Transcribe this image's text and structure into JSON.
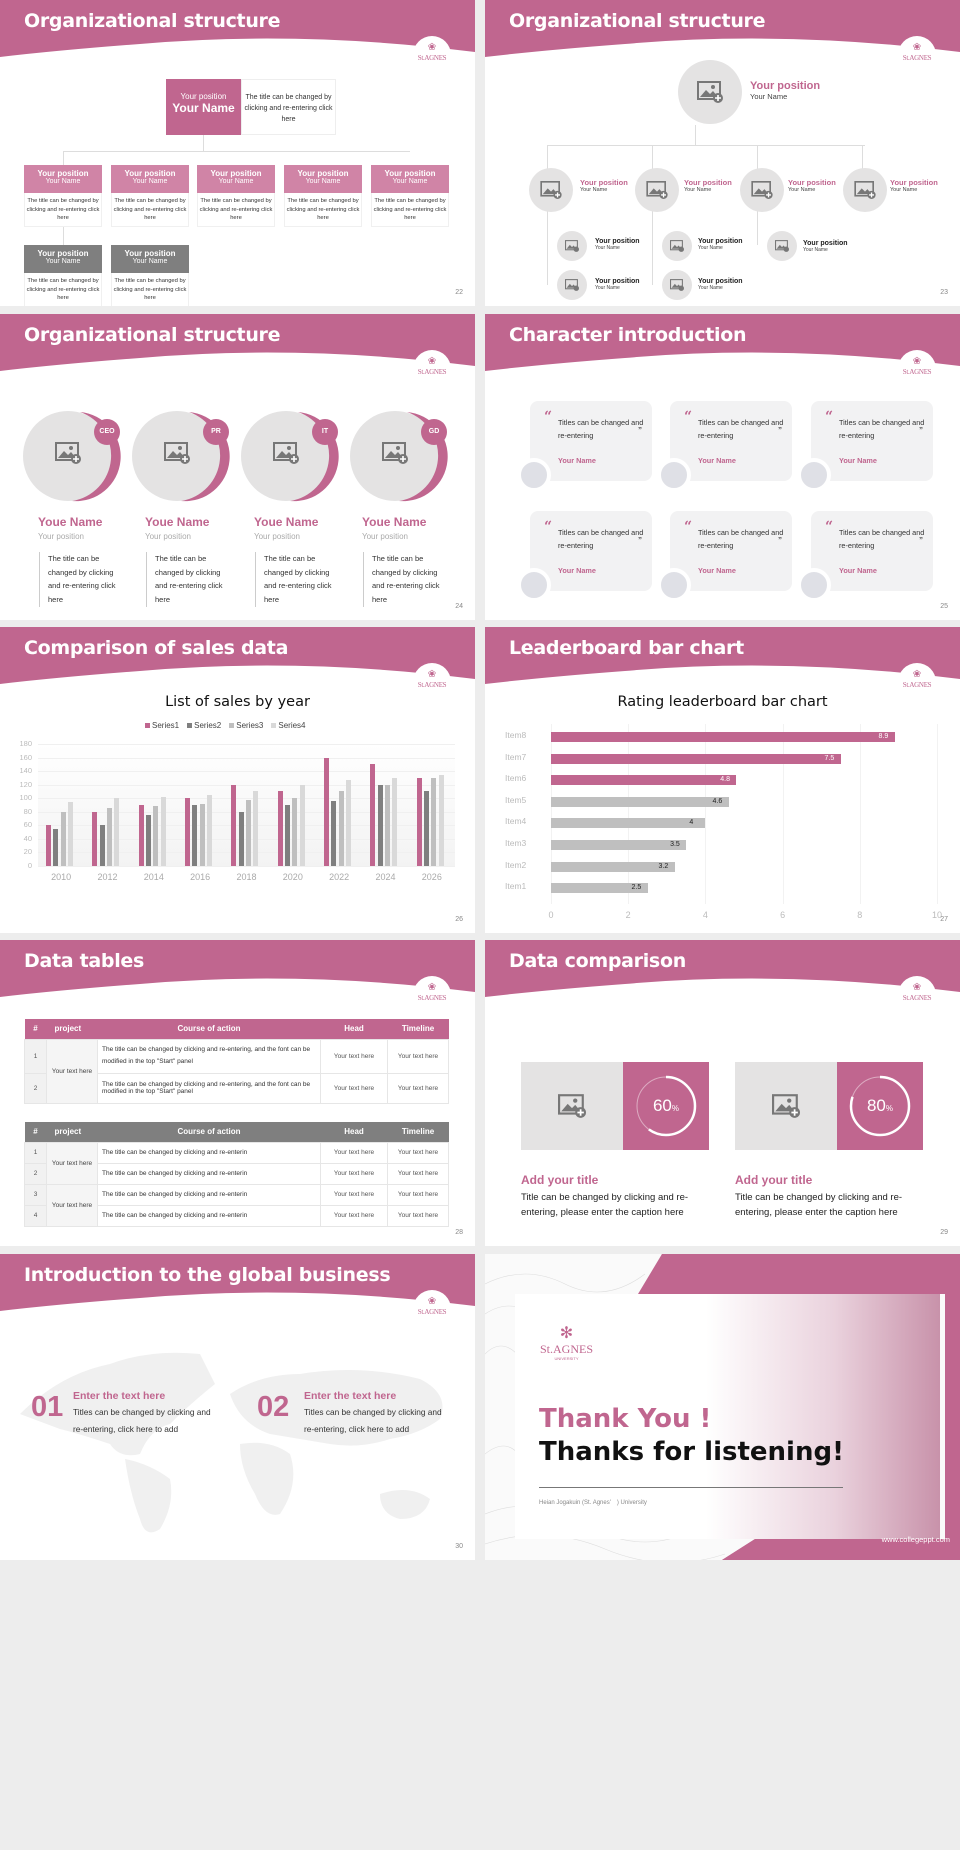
{
  "theme": {
    "accent": "#c0668f",
    "gray_dark": "#7f7f7f",
    "gray_light": "#e4e3e3"
  },
  "slides": {
    "s22": {
      "title": "Organizational structure",
      "page": "22",
      "logo": {
        "flower": "❀",
        "text": "St.AGNES"
      },
      "top": {
        "position": "Your position",
        "name": "Your Name",
        "desc": "The title can be changed by clicking and re-entering click here"
      },
      "cards": [
        {
          "position": "Your position",
          "name": "Your Name",
          "desc": "The title can be changed by clicking and re-entering click here",
          "color": "pink"
        },
        {
          "position": "Your position",
          "name": "Your Name",
          "desc": "The title can be changed by clicking and re-entering click here",
          "color": "pink"
        },
        {
          "position": "Your position",
          "name": "Your Name",
          "desc": "The title can be changed by clicking and re-entering click here",
          "color": "pink"
        },
        {
          "position": "Your position",
          "name": "Your Name",
          "desc": "The title can be changed by clicking and re-entering click here",
          "color": "pink"
        },
        {
          "position": "Your position",
          "name": "Your Name",
          "desc": "The title can be changed by clicking and re-entering click here",
          "color": "pink"
        },
        {
          "position": "Your position",
          "name": "Your Name",
          "desc": "The title can be changed by clicking and re-entering click here",
          "color": "gray"
        },
        {
          "position": "Your position",
          "name": "Your Name",
          "desc": "The title can be changed by clicking and re-entering click here",
          "color": "gray"
        }
      ]
    },
    "s23": {
      "title": "Organizational structure",
      "page": "23",
      "top": {
        "position": "Your position",
        "name": "Your Name"
      },
      "level2": [
        {
          "position": "Your position",
          "name": "Your Name"
        },
        {
          "position": "Your position",
          "name": "Your Name"
        },
        {
          "position": "Your position",
          "name": "Your Name"
        },
        {
          "position": "Your position",
          "name": "Your Name"
        }
      ],
      "level3": [
        {
          "position": "Your position",
          "name": "Your Name"
        },
        {
          "position": "Your position",
          "name": "Your Name"
        },
        {
          "position": "Your position",
          "name": "Your Name"
        },
        {
          "position": "Your position",
          "name": "Your Name"
        },
        {
          "position": "Your position",
          "name": "Your Name"
        }
      ]
    },
    "s24": {
      "title": "Organizational structure",
      "page": "24",
      "people": [
        {
          "badge": "CEO",
          "name": "Youe Name",
          "position": "Your position",
          "desc": "The title can be changed by clicking and re-entering click here"
        },
        {
          "badge": "PR",
          "name": "Youe Name",
          "position": "Your position",
          "desc": "The title can be changed by clicking and re-entering click here"
        },
        {
          "badge": "IT",
          "name": "Youe Name",
          "position": "Your position",
          "desc": "The title can be changed by clicking and re-entering click here"
        },
        {
          "badge": "GD",
          "name": "Youe Name",
          "position": "Your position",
          "desc": "The title can be changed by clicking and re-entering click here"
        }
      ]
    },
    "s25": {
      "title": "Character introduction",
      "page": "25",
      "quotes": [
        {
          "text": "Titles can be changed and re-entering",
          "name": "Your Name"
        },
        {
          "text": "Titles can be changed and re-entering",
          "name": "Your Name"
        },
        {
          "text": "Titles can be changed and re-entering",
          "name": "Your Name"
        },
        {
          "text": "Titles can be changed and re-entering",
          "name": "Your Name"
        },
        {
          "text": "Titles can be changed and re-entering",
          "name": "Your Name"
        },
        {
          "text": "Titles can be changed and re-entering",
          "name": "Your Name"
        }
      ],
      "open_quote": "“",
      "close_quote": "”"
    },
    "s26": {
      "title": "Comparison of sales data",
      "page": "26"
    },
    "s27": {
      "title": "Leaderboard bar chart",
      "page": "27"
    },
    "s28": {
      "title": "Data tables",
      "page": "28",
      "headers": [
        "#",
        "project",
        "Course of action",
        "Head",
        "Timeline"
      ],
      "table1": {
        "rows": [
          {
            "num": "1",
            "action": "The title can be changed by clicking and re-entering, and the font can be modified in the top \"Start\" panel",
            "head": "Your text here",
            "timeline": "Your text here"
          },
          {
            "num": "2",
            "action": "The title can be changed by clicking and re-entering, and the font can be modified in the top \"Start\" panel",
            "head": "Your text here",
            "timeline": "Your text here"
          }
        ],
        "project": "Your text here"
      },
      "table2": {
        "rows": [
          {
            "num": "1",
            "action": "The title can be changed by clicking and re-enterin",
            "head": "Your text here",
            "timeline": "Your text here"
          },
          {
            "num": "2",
            "action": "The title can be changed by clicking and re-enterin",
            "head": "Your text here",
            "timeline": "Your text here"
          },
          {
            "num": "3",
            "action": "The title can be changed by clicking and re-enterin",
            "head": "Your text here",
            "timeline": "Your text here"
          },
          {
            "num": "4",
            "action": "The title can be changed by clicking and re-enterin",
            "head": "Your text here",
            "timeline": "Your text here"
          }
        ],
        "project_a": "Your text here",
        "project_b": "Your text here"
      }
    },
    "s29": {
      "title": "Data comparison",
      "page": "29",
      "items": [
        {
          "pct": "60",
          "unit": "%",
          "value": 60,
          "title": "Add your title",
          "desc": "Title can be changed by clicking and re-entering, please enter the caption here"
        },
        {
          "pct": "80",
          "unit": "%",
          "value": 80,
          "title": "Add your title",
          "desc": "Title can be changed by clicking and re-entering, please enter the caption here"
        }
      ]
    },
    "s30": {
      "title": "Introduction to the global business",
      "page": "30",
      "items": [
        {
          "num": "01",
          "title": "Enter the text here",
          "desc": "Titles can be changed by clicking and re-entering, click here to add"
        },
        {
          "num": "02",
          "title": "Enter the text here",
          "desc": "Titles can be changed by clicking and re-entering, click here to add"
        }
      ]
    },
    "s31": {
      "logo_text": "St.AGNES",
      "logo_sub": "UNIVERSITY",
      "thank": "Thank You !",
      "thanks": "Thanks for listening!",
      "university": "Heian Jogakuin (St. Agnes'　) University",
      "url": "www.collegeppt.com"
    }
  },
  "chart_data": [
    {
      "type": "bar",
      "title": "List of sales by year",
      "categories": [
        "2010",
        "2012",
        "2014",
        "2016",
        "2018",
        "2020",
        "2022",
        "2024",
        "2026"
      ],
      "series": [
        {
          "name": "Series1",
          "color": "#c0668f",
          "values": [
            60,
            80,
            90,
            100,
            120,
            110,
            160,
            150,
            130
          ]
        },
        {
          "name": "Series2",
          "color": "#7f7f7f",
          "values": [
            55,
            60,
            75,
            90,
            80,
            90,
            96,
            120,
            110
          ]
        },
        {
          "name": "Series3",
          "color": "#bfbfbf",
          "values": [
            80,
            86,
            88,
            92,
            98,
            100,
            110,
            120,
            130
          ]
        },
        {
          "name": "Series4",
          "color": "#d9d9d9",
          "values": [
            95,
            100,
            102,
            105,
            110,
            120,
            127,
            130,
            135
          ]
        }
      ],
      "yticks": [
        "180",
        "160",
        "140",
        "120",
        "100",
        "80",
        "60",
        "40",
        "20",
        "0"
      ],
      "ylim": [
        0,
        180
      ],
      "legend_position": "top",
      "grid": true
    },
    {
      "type": "bar",
      "orientation": "horizontal",
      "title": "Rating leaderboard bar chart",
      "categories": [
        "Item8",
        "Item7",
        "Item6",
        "Item5",
        "Item4",
        "Item3",
        "Item2",
        "Item1"
      ],
      "values": [
        8.9,
        7.5,
        4.8,
        4.6,
        4,
        3.5,
        3.2,
        2.5
      ],
      "labels": [
        "8.9",
        "7.5",
        "4.8",
        "4.6",
        "4",
        "3.5",
        "3.2",
        "2.5"
      ],
      "highlight_top": 3,
      "xticks": [
        "0",
        "2",
        "4",
        "6",
        "8",
        "10"
      ],
      "xlim": [
        0,
        10
      ],
      "grid": true
    }
  ]
}
